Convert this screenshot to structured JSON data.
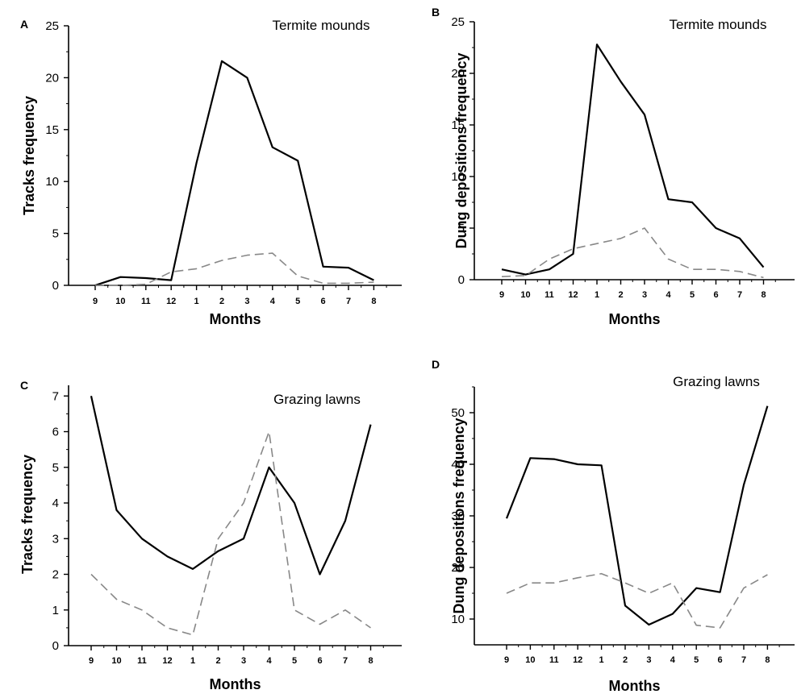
{
  "chart_data": [
    {
      "type": "line",
      "panel": "A",
      "title": "Termite mounds",
      "xlabel": "Months",
      "ylabel": "Tracks frequency",
      "categories": [
        "9",
        "10",
        "11",
        "12",
        "1",
        "2",
        "3",
        "4",
        "5",
        "6",
        "7",
        "8"
      ],
      "ylim": [
        0,
        25
      ],
      "yticks": [
        0,
        5,
        10,
        15,
        20,
        25
      ],
      "grid": false,
      "series": [
        {
          "style": "solid",
          "color": "#000000",
          "values": [
            0,
            0.8,
            0.7,
            0.5,
            11.8,
            21.6,
            20.0,
            13.3,
            12.0,
            1.8,
            1.7,
            0.5
          ]
        },
        {
          "style": "dashed",
          "color": "#888888",
          "values": [
            0,
            0,
            0.1,
            1.3,
            1.6,
            2.4,
            2.9,
            3.1,
            0.9,
            0.2,
            0.2,
            0.3
          ]
        }
      ]
    },
    {
      "type": "line",
      "panel": "B",
      "title": "Termite mounds",
      "xlabel": "Months",
      "ylabel": "Dung depositions frequency",
      "categories": [
        "9",
        "10",
        "11",
        "12",
        "1",
        "2",
        "3",
        "4",
        "5",
        "6",
        "7",
        "8"
      ],
      "ylim": [
        0,
        25
      ],
      "yticks": [
        0,
        5,
        10,
        15,
        20,
        25
      ],
      "grid": false,
      "series": [
        {
          "style": "solid",
          "color": "#000000",
          "values": [
            1.0,
            0.5,
            1.0,
            2.5,
            22.8,
            19.2,
            16.0,
            7.8,
            7.5,
            5.0,
            4.0,
            1.2
          ]
        },
        {
          "style": "dashed",
          "color": "#888888",
          "values": [
            0.3,
            0.4,
            2.0,
            3.0,
            3.5,
            4.0,
            5.0,
            2.0,
            1.0,
            1.0,
            0.8,
            0.2
          ]
        }
      ]
    },
    {
      "type": "line",
      "panel": "C",
      "title": "Grazing lawns",
      "xlabel": "Months",
      "ylabel": "Tracks frequency",
      "categories": [
        "9",
        "10",
        "11",
        "12",
        "1",
        "2",
        "3",
        "4",
        "5",
        "6",
        "7",
        "8"
      ],
      "ylim": [
        0,
        7.3
      ],
      "yticks": [
        0,
        1,
        2,
        3,
        4,
        5,
        6,
        7
      ],
      "grid": false,
      "series": [
        {
          "style": "solid",
          "color": "#000000",
          "values": [
            7.0,
            3.8,
            3.0,
            2.5,
            2.15,
            2.65,
            3.0,
            5.0,
            4.0,
            2.0,
            3.5,
            6.2
          ]
        },
        {
          "style": "dashed",
          "color": "#888888",
          "values": [
            2.0,
            1.3,
            1.0,
            0.5,
            0.3,
            3.0,
            4.0,
            6.0,
            1.0,
            0.6,
            1.0,
            0.5
          ]
        }
      ]
    },
    {
      "type": "line",
      "panel": "D",
      "title": "Grazing lawns",
      "xlabel": "Months",
      "ylabel": "Dung depositions frequency",
      "categories": [
        "9",
        "10",
        "11",
        "12",
        "1",
        "2",
        "3",
        "4",
        "5",
        "6",
        "7",
        "8"
      ],
      "ylim": [
        5,
        55
      ],
      "yticks": [
        10,
        20,
        30,
        40,
        50
      ],
      "grid": false,
      "series": [
        {
          "style": "solid",
          "color": "#000000",
          "values": [
            29.5,
            41.2,
            41.0,
            40.0,
            39.8,
            12.6,
            8.9,
            11.0,
            16.0,
            15.2,
            36.0,
            51.3
          ]
        },
        {
          "style": "dashed",
          "color": "#888888",
          "values": [
            15.0,
            17.0,
            17.0,
            18.0,
            18.8,
            17.0,
            15.0,
            17.0,
            8.8,
            8.3,
            16.0,
            18.6
          ]
        }
      ]
    }
  ]
}
